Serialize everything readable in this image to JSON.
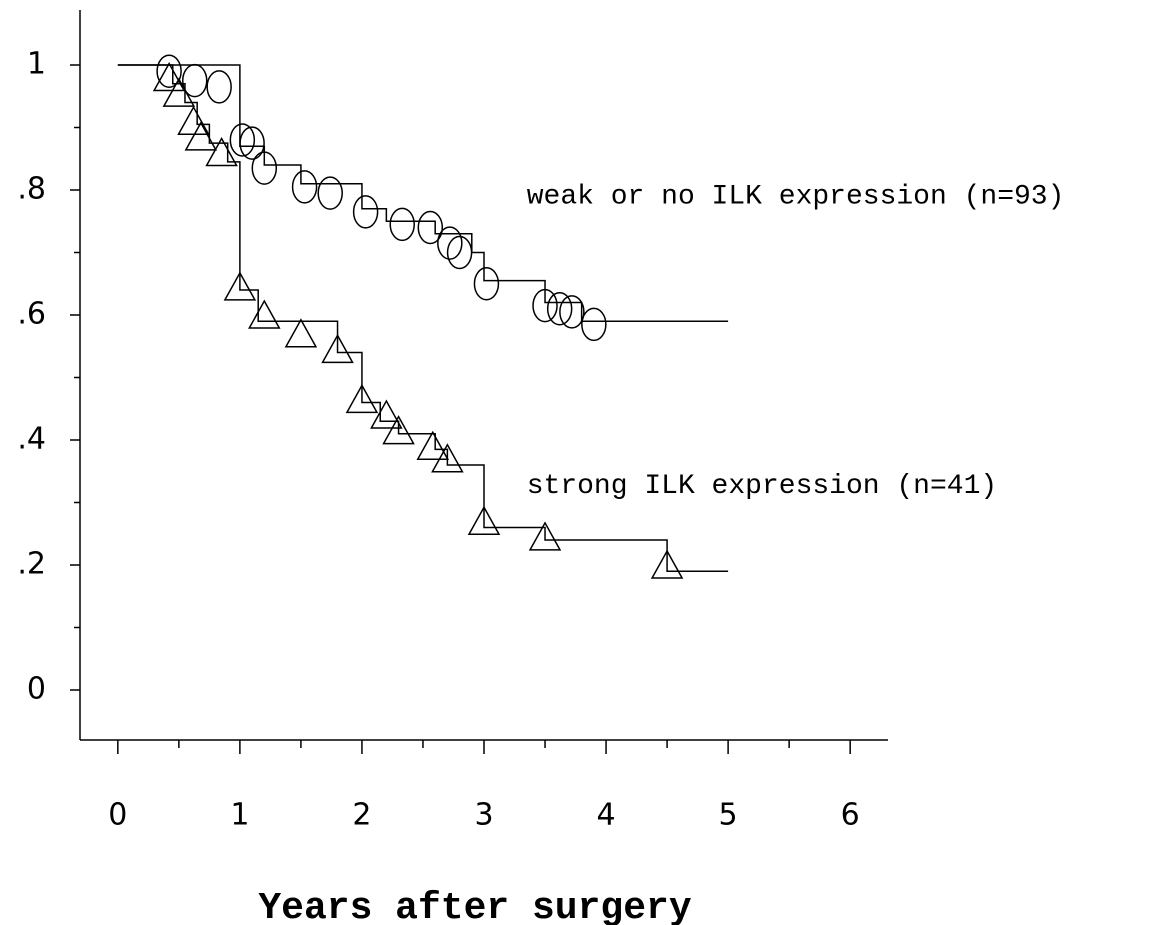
{
  "chart_data": {
    "type": "step",
    "xlabel": "Years after surgery",
    "xlim": [
      -0.31,
      6.31
    ],
    "ylim": [
      -0.08,
      1.088
    ],
    "xticks": [
      0,
      1,
      2,
      3,
      4,
      5,
      6
    ],
    "minor_xticks": [
      0.5,
      1.5,
      2.5,
      3.5,
      4.5,
      5.5
    ],
    "yticks": [
      0,
      {
        "value": 0.2,
        "label": ".2"
      },
      {
        "value": 0.4,
        "label": ".4"
      },
      {
        "value": 0.6,
        "label": ".6"
      },
      {
        "value": 0.8,
        "label": ".8"
      },
      1
    ],
    "minor_yticks": [
      0.1,
      0.3,
      0.5,
      0.7,
      0.9
    ],
    "color": "#000000",
    "series": [
      {
        "name": "weak or no ILK expression (n=93)",
        "marker": "circle",
        "x": [
          0,
          1.0,
          1.2,
          1.5,
          2.0,
          2.2,
          2.6,
          2.9,
          3.0,
          3.5,
          3.8,
          5.0
        ],
        "values": [
          1,
          0.87,
          0.84,
          0.81,
          0.77,
          0.75,
          0.73,
          0.7,
          0.655,
          0.62,
          0.59,
          0.59
        ],
        "censor_x": [
          0.42,
          0.63,
          0.83,
          1.02,
          1.1,
          1.2,
          1.53,
          1.74,
          2.03,
          2.33,
          2.56,
          2.72,
          2.8,
          3.02,
          3.5,
          3.62,
          3.72,
          3.9
        ],
        "censor_y": [
          0.99,
          0.975,
          0.965,
          0.88,
          0.875,
          0.835,
          0.805,
          0.795,
          0.765,
          0.745,
          0.74,
          0.715,
          0.7,
          0.65,
          0.615,
          0.61,
          0.605,
          0.585
        ],
        "label_at": [
          3.35,
          0.79
        ]
      },
      {
        "name": "strong ILK expression (n=41)",
        "marker": "triangle",
        "x": [
          0,
          0.45,
          0.55,
          0.65,
          0.75,
          0.9,
          1.0,
          1.15,
          1.8,
          2.0,
          2.15,
          2.3,
          2.6,
          2.7,
          3.0,
          3.5,
          4.5,
          5.0
        ],
        "values": [
          1,
          0.97,
          0.94,
          0.905,
          0.875,
          0.845,
          0.64,
          0.59,
          0.54,
          0.46,
          0.43,
          0.41,
          0.385,
          0.36,
          0.26,
          0.24,
          0.19,
          0.19
        ],
        "censor_x": [
          0.42,
          0.5,
          0.62,
          0.68,
          0.85,
          1.0,
          1.2,
          1.5,
          1.8,
          2.0,
          2.2,
          2.3,
          2.58,
          2.7,
          3.0,
          3.5,
          4.5
        ],
        "censor_y": [
          0.98,
          0.955,
          0.91,
          0.885,
          0.86,
          0.645,
          0.6,
          0.57,
          0.545,
          0.465,
          0.44,
          0.415,
          0.39,
          0.37,
          0.27,
          0.245,
          0.2
        ],
        "label_at": [
          3.35,
          0.327
        ]
      }
    ]
  }
}
